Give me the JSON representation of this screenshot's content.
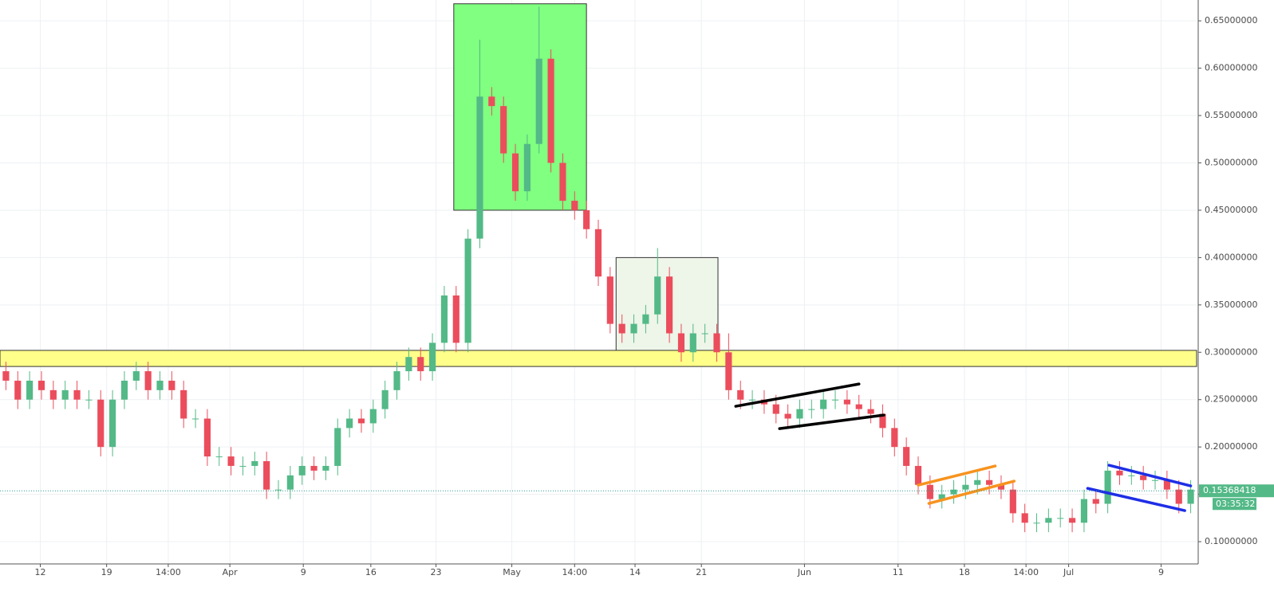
{
  "chart_data": {
    "type": "candlestick",
    "up_color": "#53b987",
    "down_color": "#eb4d5c",
    "grid": true,
    "xlim": [
      -0.5,
      100.5
    ],
    "ylim": [
      0.0765,
      0.672
    ],
    "yticks": [
      {
        "value": 0.1,
        "label": "0.10000000"
      },
      {
        "value": 0.15,
        "label": "0.15000000"
      },
      {
        "value": 0.2,
        "label": "0.20000000"
      },
      {
        "value": 0.25,
        "label": "0.25000000"
      },
      {
        "value": 0.3,
        "label": "0.30000000"
      },
      {
        "value": 0.35,
        "label": "0.35000000"
      },
      {
        "value": 0.4,
        "label": "0.40000000"
      },
      {
        "value": 0.45,
        "label": "0.45000000"
      },
      {
        "value": 0.5,
        "label": "0.50000000"
      },
      {
        "value": 0.55,
        "label": "0.55000000"
      },
      {
        "value": 0.6,
        "label": "0.60000000"
      },
      {
        "value": 0.65,
        "label": "0.65000000"
      }
    ],
    "xticks": [
      {
        "value": 2.9,
        "label": "12"
      },
      {
        "value": 8.5,
        "label": "19"
      },
      {
        "value": 13.7,
        "label": "14:00"
      },
      {
        "value": 18.9,
        "label": "Apr"
      },
      {
        "value": 25.1,
        "label": "9"
      },
      {
        "value": 30.8,
        "label": "16"
      },
      {
        "value": 36.3,
        "label": "23"
      },
      {
        "value": 42.7,
        "label": "May"
      },
      {
        "value": 48,
        "label": "14:00"
      },
      {
        "value": 53.1,
        "label": "14"
      },
      {
        "value": 58.7,
        "label": "21"
      },
      {
        "value": 67.4,
        "label": "Jun"
      },
      {
        "value": 75.3,
        "label": "11"
      },
      {
        "value": 80.9,
        "label": "18"
      },
      {
        "value": 86.1,
        "label": "14:00"
      },
      {
        "value": 89.7,
        "label": "Jul"
      },
      {
        "value": 97.5,
        "label": "9"
      }
    ],
    "open": [
      0.28,
      0.27,
      0.25,
      0.27,
      0.26,
      0.25,
      0.26,
      0.25,
      0.25,
      0.2,
      0.25,
      0.27,
      0.28,
      0.26,
      0.27,
      0.26,
      0.23,
      0.23,
      0.19,
      0.19,
      0.18,
      0.18,
      0.185,
      0.155,
      0.155,
      0.17,
      0.18,
      0.175,
      0.18,
      0.22,
      0.23,
      0.225,
      0.24,
      0.26,
      0.28,
      0.295,
      0.28,
      0.31,
      0.36,
      0.31,
      0.42,
      0.57,
      0.56,
      0.51,
      0.47,
      0.52,
      0.61,
      0.5,
      0.46,
      0.45,
      0.43,
      0.38,
      0.33,
      0.32,
      0.33,
      0.34,
      0.38,
      0.32,
      0.3,
      0.32,
      0.32,
      0.3,
      0.26,
      0.25,
      0.25,
      0.245,
      0.235,
      0.23,
      0.24,
      0.24,
      0.25,
      0.25,
      0.245,
      0.24,
      0.235,
      0.22,
      0.2,
      0.18,
      0.16,
      0.145,
      0.15,
      0.155,
      0.16,
      0.165,
      0.16,
      0.155,
      0.13,
      0.12,
      0.12,
      0.125,
      0.125,
      0.12,
      0.145,
      0.14,
      0.175,
      0.17,
      0.17,
      0.165,
      0.165,
      0.155,
      0.14
    ],
    "high": [
      0.29,
      0.28,
      0.28,
      0.28,
      0.27,
      0.27,
      0.27,
      0.26,
      0.26,
      0.26,
      0.28,
      0.29,
      0.29,
      0.28,
      0.28,
      0.27,
      0.24,
      0.24,
      0.2,
      0.2,
      0.19,
      0.195,
      0.195,
      0.165,
      0.18,
      0.19,
      0.19,
      0.19,
      0.23,
      0.24,
      0.24,
      0.25,
      0.27,
      0.29,
      0.305,
      0.305,
      0.32,
      0.37,
      0.37,
      0.43,
      0.63,
      0.58,
      0.57,
      0.52,
      0.53,
      0.665,
      0.62,
      0.51,
      0.47,
      0.46,
      0.44,
      0.39,
      0.34,
      0.34,
      0.35,
      0.41,
      0.39,
      0.33,
      0.33,
      0.33,
      0.33,
      0.32,
      0.27,
      0.26,
      0.26,
      0.255,
      0.245,
      0.25,
      0.25,
      0.26,
      0.26,
      0.26,
      0.255,
      0.25,
      0.245,
      0.23,
      0.21,
      0.19,
      0.17,
      0.16,
      0.165,
      0.17,
      0.175,
      0.175,
      0.17,
      0.165,
      0.14,
      0.13,
      0.135,
      0.135,
      0.135,
      0.155,
      0.155,
      0.185,
      0.185,
      0.18,
      0.18,
      0.175,
      0.175,
      0.165,
      0.165
    ],
    "low": [
      0.26,
      0.24,
      0.24,
      0.25,
      0.24,
      0.24,
      0.24,
      0.24,
      0.19,
      0.19,
      0.24,
      0.26,
      0.25,
      0.25,
      0.25,
      0.22,
      0.22,
      0.18,
      0.18,
      0.17,
      0.17,
      0.17,
      0.145,
      0.145,
      0.145,
      0.16,
      0.165,
      0.165,
      0.17,
      0.21,
      0.215,
      0.215,
      0.23,
      0.25,
      0.27,
      0.27,
      0.27,
      0.3,
      0.3,
      0.3,
      0.41,
      0.55,
      0.5,
      0.46,
      0.46,
      0.51,
      0.49,
      0.45,
      0.44,
      0.42,
      0.37,
      0.32,
      0.31,
      0.31,
      0.32,
      0.33,
      0.31,
      0.29,
      0.29,
      0.31,
      0.29,
      0.25,
      0.24,
      0.24,
      0.235,
      0.225,
      0.22,
      0.22,
      0.23,
      0.23,
      0.24,
      0.235,
      0.23,
      0.225,
      0.21,
      0.19,
      0.17,
      0.15,
      0.135,
      0.135,
      0.14,
      0.145,
      0.15,
      0.15,
      0.145,
      0.12,
      0.11,
      0.11,
      0.11,
      0.115,
      0.11,
      0.11,
      0.13,
      0.13,
      0.16,
      0.16,
      0.155,
      0.155,
      0.145,
      0.13,
      0.13
    ],
    "close": [
      0.27,
      0.25,
      0.27,
      0.26,
      0.25,
      0.26,
      0.25,
      0.25,
      0.2,
      0.25,
      0.27,
      0.28,
      0.26,
      0.27,
      0.26,
      0.23,
      0.23,
      0.19,
      0.19,
      0.18,
      0.18,
      0.185,
      0.155,
      0.155,
      0.17,
      0.18,
      0.175,
      0.18,
      0.22,
      0.23,
      0.225,
      0.24,
      0.26,
      0.28,
      0.295,
      0.28,
      0.31,
      0.36,
      0.31,
      0.42,
      0.57,
      0.56,
      0.51,
      0.47,
      0.52,
      0.61,
      0.5,
      0.46,
      0.45,
      0.43,
      0.38,
      0.33,
      0.32,
      0.33,
      0.34,
      0.38,
      0.32,
      0.3,
      0.32,
      0.32,
      0.3,
      0.26,
      0.25,
      0.25,
      0.245,
      0.235,
      0.23,
      0.24,
      0.24,
      0.25,
      0.25,
      0.245,
      0.24,
      0.235,
      0.22,
      0.2,
      0.18,
      0.16,
      0.145,
      0.15,
      0.155,
      0.16,
      0.165,
      0.16,
      0.155,
      0.13,
      0.12,
      0.12,
      0.125,
      0.125,
      0.12,
      0.145,
      0.14,
      0.175,
      0.17,
      0.17,
      0.165,
      0.165,
      0.155,
      0.14,
      0.155
    ],
    "last_price": 0.15368418,
    "countdown": "03:35:32",
    "zones": [
      {
        "x": [
          37.8,
          49.0
        ],
        "y": [
          0.45,
          0.668
        ],
        "color": "#80ff80"
      },
      {
        "x": [
          51.5,
          60.1
        ],
        "y": [
          0.3,
          0.4
        ],
        "color": "#eef5e9"
      },
      {
        "x": [
          -0.5,
          100.5
        ],
        "y": [
          0.285,
          0.302
        ],
        "color": "#ffff8a"
      }
    ],
    "trendlines": [
      {
        "x": [
          61.6,
          72.0
        ],
        "y": [
          0.243,
          0.2665
        ],
        "color": "#000000"
      },
      {
        "x": [
          65.3,
          74.1
        ],
        "y": [
          0.2194,
          0.2337
        ],
        "color": "#000000"
      },
      {
        "x": [
          77.0,
          83.5
        ],
        "y": [
          0.1597,
          0.1799
        ],
        "color": "#f7931e"
      },
      {
        "x": [
          77.9,
          85.1
        ],
        "y": [
          0.1404,
          0.1639
        ],
        "color": "#f7931e"
      },
      {
        "x": [
          93.1,
          100.0
        ],
        "y": [
          0.1807,
          0.1589
        ],
        "color": "#1e2ee6"
      },
      {
        "x": [
          91.3,
          99.5
        ],
        "y": [
          0.1563,
          0.1328
        ],
        "color": "#1e2ee6"
      }
    ]
  }
}
